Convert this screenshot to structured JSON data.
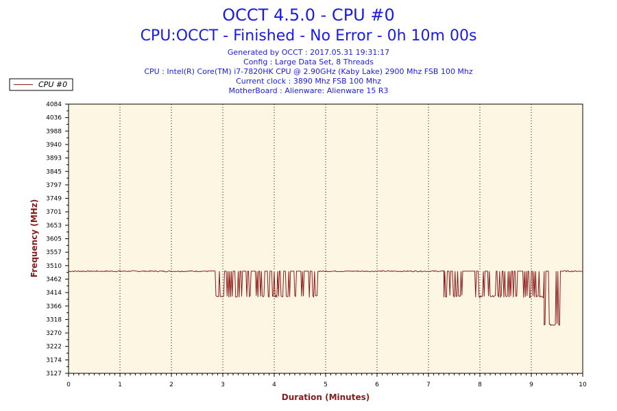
{
  "header": {
    "title": "OCCT 4.5.0 - CPU #0",
    "subtitle": "CPU:OCCT - Finished - No Error - 0h 10m 00s",
    "info_lines": [
      "Generated by OCCT : 2017.05.31 19:31:17",
      "Config : Large Data Set, 8 Threads",
      "CPU : Intel(R) Core(TM) i7-7820HK CPU @ 2.90GHz (Kaby Lake) 2900 Mhz FSB 100 Mhz",
      "Current clock : 3890 Mhz FSB 100 Mhz",
      "MotherBoard : Alienware: Alienware 15 R3"
    ]
  },
  "colors": {
    "title": "#1a1ae6",
    "line": "#8b1a1a",
    "plot_bg": "#fdf6e3",
    "axis_title": "#8b1a1a",
    "grid": "#000000"
  },
  "chart_data": {
    "type": "line",
    "title": "OCCT 4.5.0 - CPU #0",
    "xlabel": "Duration (Minutes)",
    "ylabel": "Frequency (MHz)",
    "xlim": [
      0,
      10
    ],
    "ylim": [
      3127,
      4084
    ],
    "x_ticks": [
      "0",
      "1",
      "2",
      "3",
      "4",
      "5",
      "6",
      "7",
      "8",
      "9",
      "10"
    ],
    "y_ticks": [
      "4084",
      "4036",
      "3988",
      "3940",
      "3893",
      "3845",
      "3797",
      "3749",
      "3701",
      "3653",
      "3605",
      "3557",
      "3510",
      "3462",
      "3414",
      "3366",
      "3318",
      "3270",
      "3222",
      "3174",
      "3127"
    ],
    "grid": "vertical-dotted",
    "legend_position": "top-left",
    "series": [
      {
        "name": "CPU #0",
        "baseline": 3490,
        "segments": [
          {
            "x_start": 0.0,
            "x_end": 2.85,
            "pattern": "steady",
            "values": [
              3490
            ]
          },
          {
            "x_start": 2.85,
            "x_end": 4.85,
            "pattern": "toggle",
            "values": [
              3490,
              3400
            ]
          },
          {
            "x_start": 4.85,
            "x_end": 7.3,
            "pattern": "steady",
            "values": [
              3490
            ]
          },
          {
            "x_start": 7.3,
            "x_end": 9.25,
            "pattern": "toggle",
            "values": [
              3490,
              3400
            ]
          },
          {
            "x_start": 9.25,
            "x_end": 9.6,
            "pattern": "toggle",
            "values": [
              3490,
              3300
            ]
          },
          {
            "x_start": 9.6,
            "x_end": 10.0,
            "pattern": "steady",
            "values": [
              3490
            ]
          }
        ]
      }
    ]
  }
}
